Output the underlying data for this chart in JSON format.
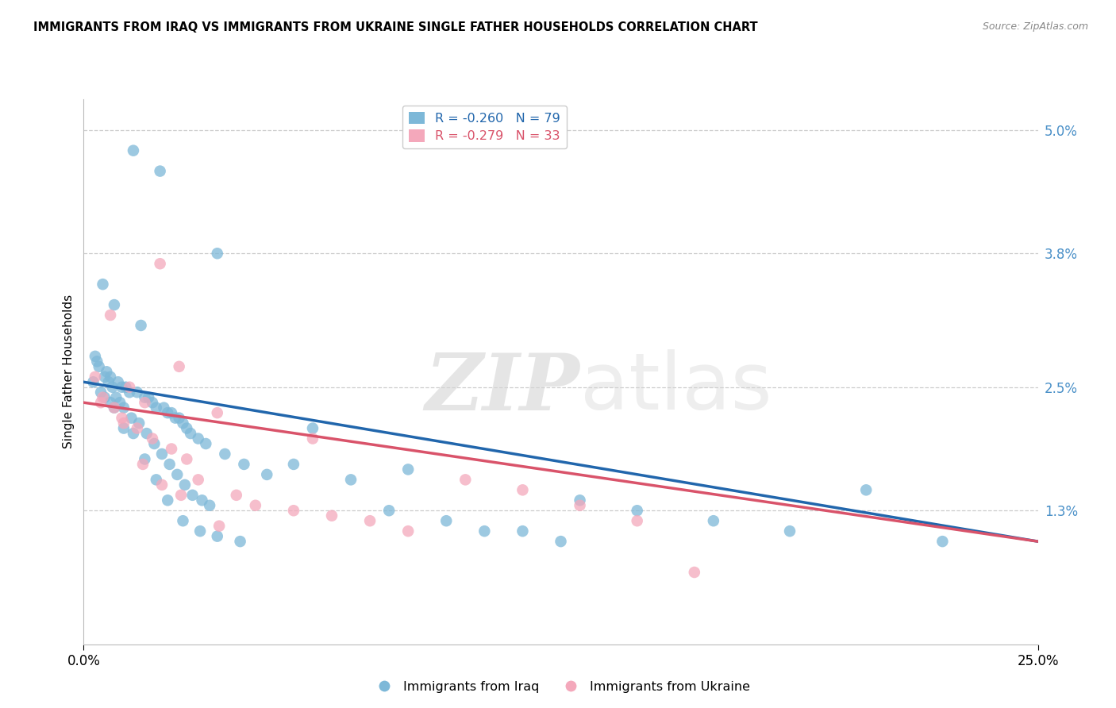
{
  "title": "IMMIGRANTS FROM IRAQ VS IMMIGRANTS FROM UKRAINE SINGLE FATHER HOUSEHOLDS CORRELATION CHART",
  "source": "Source: ZipAtlas.com",
  "ylabel": "Single Father Households",
  "xlim": [
    0.0,
    25.0
  ],
  "ylim": [
    0.0,
    5.3
  ],
  "yticks": [
    1.3,
    2.5,
    3.8,
    5.0
  ],
  "ytick_labels": [
    "1.3%",
    "2.5%",
    "3.8%",
    "5.0%"
  ],
  "legend_iraq_r": "-0.260",
  "legend_iraq_n": "79",
  "legend_ukraine_r": "-0.279",
  "legend_ukraine_n": "33",
  "series_iraq_label": "Immigrants from Iraq",
  "series_ukraine_label": "Immigrants from Ukraine",
  "iraq_color": "#7db8d8",
  "ukraine_color": "#f4a8bb",
  "iraq_line_color": "#2166ac",
  "ukraine_line_color": "#d9536a",
  "background_color": "#ffffff",
  "grid_color": "#cccccc",
  "watermark_color": "#d5d5d5",
  "iraq_x": [
    1.3,
    2.0,
    3.5,
    0.5,
    0.8,
    1.5,
    0.3,
    0.4,
    0.6,
    0.7,
    0.9,
    1.0,
    1.1,
    1.2,
    1.4,
    1.6,
    1.7,
    1.8,
    1.9,
    2.1,
    2.2,
    2.3,
    2.4,
    2.5,
    2.6,
    2.7,
    2.8,
    3.0,
    3.2,
    3.7,
    4.2,
    4.8,
    0.35,
    0.55,
    0.65,
    0.75,
    0.85,
    0.95,
    1.05,
    1.25,
    1.45,
    1.65,
    1.85,
    2.05,
    2.25,
    2.45,
    2.65,
    2.85,
    3.1,
    3.3,
    5.5,
    6.0,
    7.0,
    8.0,
    8.5,
    9.5,
    10.5,
    11.5,
    12.5,
    13.0,
    14.5,
    16.5,
    18.5,
    20.5,
    22.5,
    0.25,
    0.45,
    0.55,
    0.7,
    0.8,
    1.05,
    1.3,
    1.6,
    1.9,
    2.2,
    2.6,
    3.05,
    3.5,
    4.1
  ],
  "iraq_y": [
    4.8,
    4.6,
    3.8,
    3.5,
    3.3,
    3.1,
    2.8,
    2.7,
    2.65,
    2.6,
    2.55,
    2.5,
    2.5,
    2.45,
    2.45,
    2.4,
    2.4,
    2.35,
    2.3,
    2.3,
    2.25,
    2.25,
    2.2,
    2.2,
    2.15,
    2.1,
    2.05,
    2.0,
    1.95,
    1.85,
    1.75,
    1.65,
    2.75,
    2.6,
    2.55,
    2.5,
    2.4,
    2.35,
    2.3,
    2.2,
    2.15,
    2.05,
    1.95,
    1.85,
    1.75,
    1.65,
    1.55,
    1.45,
    1.4,
    1.35,
    1.75,
    2.1,
    1.6,
    1.3,
    1.7,
    1.2,
    1.1,
    1.1,
    1.0,
    1.4,
    1.3,
    1.2,
    1.1,
    1.5,
    1.0,
    2.55,
    2.45,
    2.4,
    2.35,
    2.3,
    2.1,
    2.05,
    1.8,
    1.6,
    1.4,
    1.2,
    1.1,
    1.05,
    1.0
  ],
  "ukraine_x": [
    0.3,
    0.5,
    0.7,
    0.8,
    1.0,
    1.2,
    1.4,
    1.6,
    1.8,
    2.0,
    2.3,
    2.5,
    2.7,
    3.0,
    3.5,
    4.0,
    4.5,
    5.5,
    6.5,
    7.5,
    8.5,
    10.0,
    11.5,
    13.0,
    14.5,
    0.45,
    1.05,
    1.55,
    2.05,
    2.55,
    3.55,
    6.0,
    16.0
  ],
  "ukraine_y": [
    2.6,
    2.4,
    3.2,
    2.3,
    2.2,
    2.5,
    2.1,
    2.35,
    2.0,
    3.7,
    1.9,
    2.7,
    1.8,
    1.6,
    2.25,
    1.45,
    1.35,
    1.3,
    1.25,
    1.2,
    1.1,
    1.6,
    1.5,
    1.35,
    1.2,
    2.35,
    2.15,
    1.75,
    1.55,
    1.45,
    1.15,
    2.0,
    0.7
  ]
}
